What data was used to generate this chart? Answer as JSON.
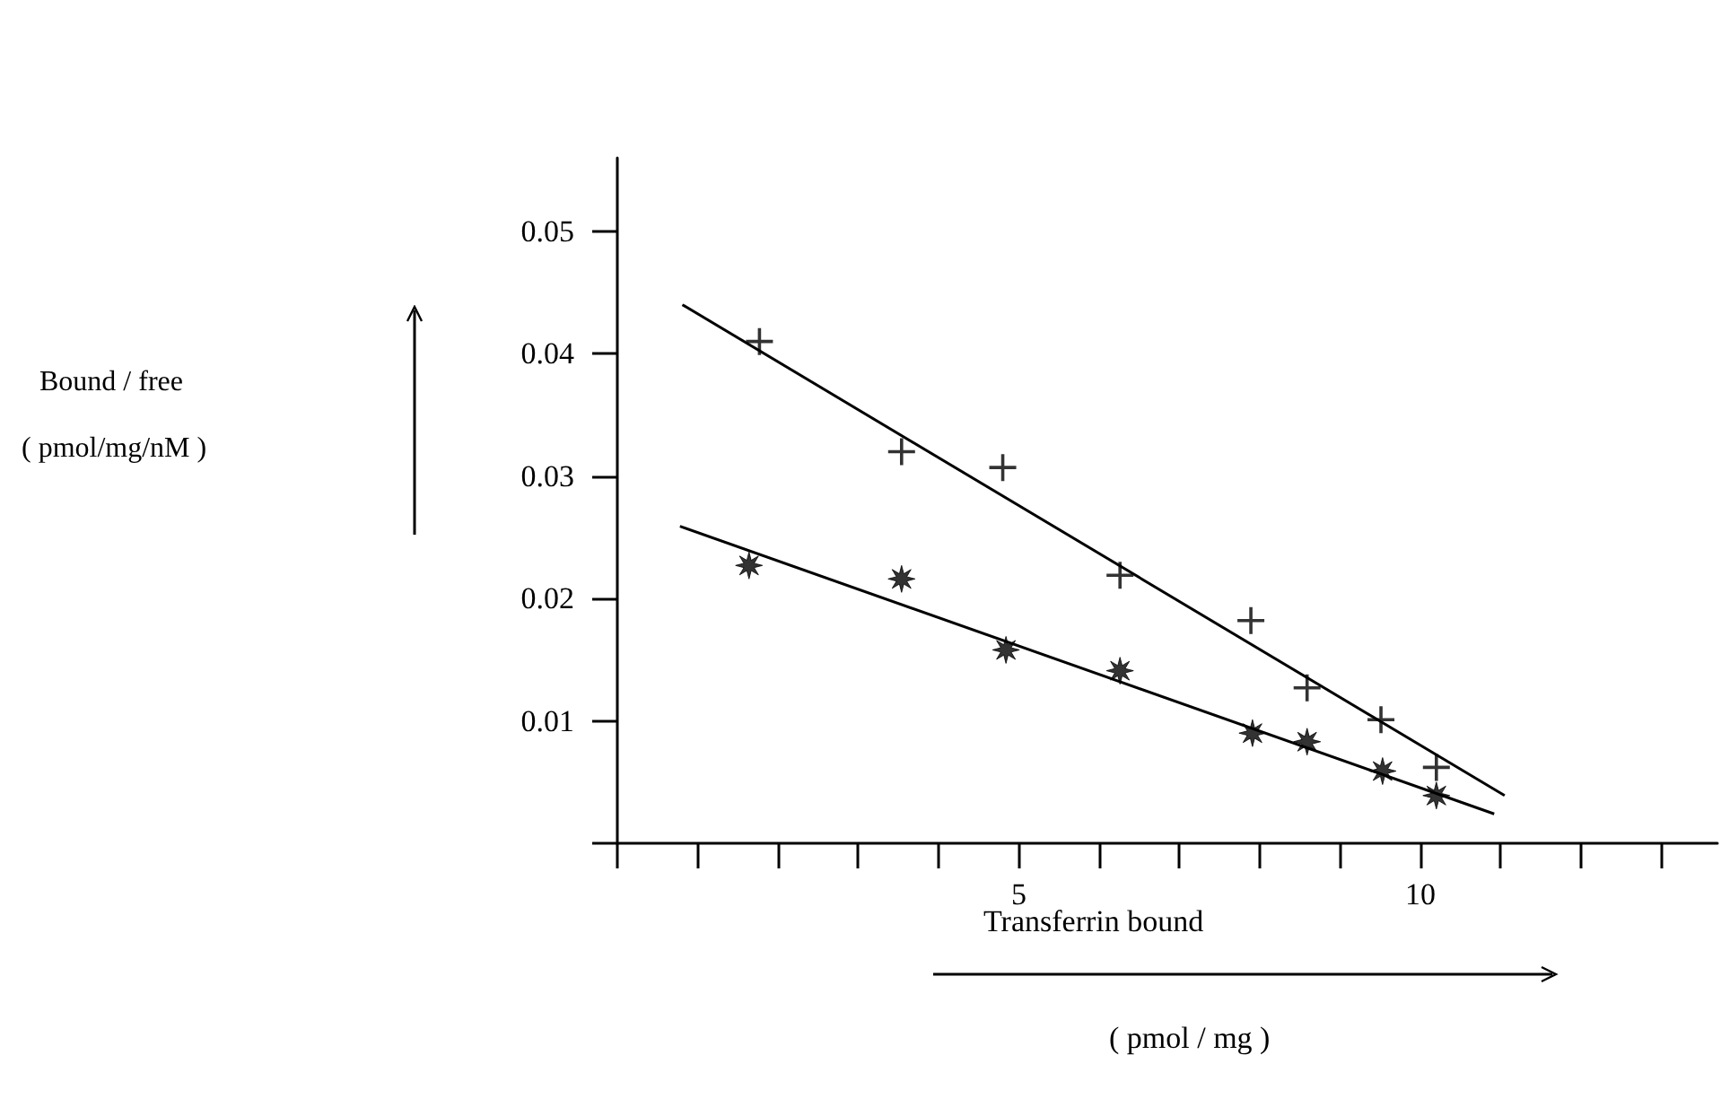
{
  "chart_data": {
    "type": "scatter",
    "xlabel": "Transferrin bound\n( pmol / mg )",
    "ylabel": "Bound / free\n( pmol/mg/nM )",
    "xlim": [
      0,
      13.7
    ],
    "ylim": [
      0,
      0.056
    ],
    "xticks": [
      {
        "value": 0,
        "label": null
      },
      {
        "value": 1,
        "label": null
      },
      {
        "value": 2,
        "label": null
      },
      {
        "value": 3,
        "label": null
      },
      {
        "value": 4,
        "label": null
      },
      5,
      {
        "value": 6,
        "label": null
      },
      {
        "value": 7,
        "label": null
      },
      {
        "value": 8,
        "label": null
      },
      {
        "value": 9,
        "label": null
      },
      10,
      {
        "value": 11,
        "label": null
      },
      {
        "value": 12,
        "label": null
      },
      {
        "value": 13,
        "label": null
      }
    ],
    "yticks": [
      {
        "value": 0,
        "label": null
      },
      0.01,
      0.02,
      0.03,
      0.04,
      0.05
    ],
    "grid": false,
    "series": [
      {
        "color": "#000000",
        "marker": "cross",
        "x": [
          1.77,
          3.54,
          4.8,
          6.26,
          7.89,
          8.59,
          9.51,
          10.2
        ],
        "values": [
          0.041,
          0.032,
          0.0307,
          0.0219,
          0.0182,
          0.0127,
          0.0101,
          0.0062
        ]
      },
      {
        "color": "#000000",
        "marker": "star",
        "x": [
          1.64,
          3.54,
          4.84,
          6.26,
          7.91,
          8.59,
          9.53,
          10.2
        ],
        "values": [
          0.0227,
          0.0216,
          0.0158,
          0.0141,
          0.009,
          0.0083,
          0.0059,
          0.0039
        ]
      },
      {
        "type": "line",
        "color": "#000000",
        "marker": "none",
        "line_style": "solid",
        "x": [
          0.81,
          11.05
        ],
        "values": [
          0.044,
          0.0039
        ]
      },
      {
        "type": "line",
        "color": "#000000",
        "marker": "none",
        "line_style": "solid",
        "x": [
          0.78,
          10.92
        ],
        "values": [
          0.0259,
          0.0024
        ]
      }
    ]
  }
}
